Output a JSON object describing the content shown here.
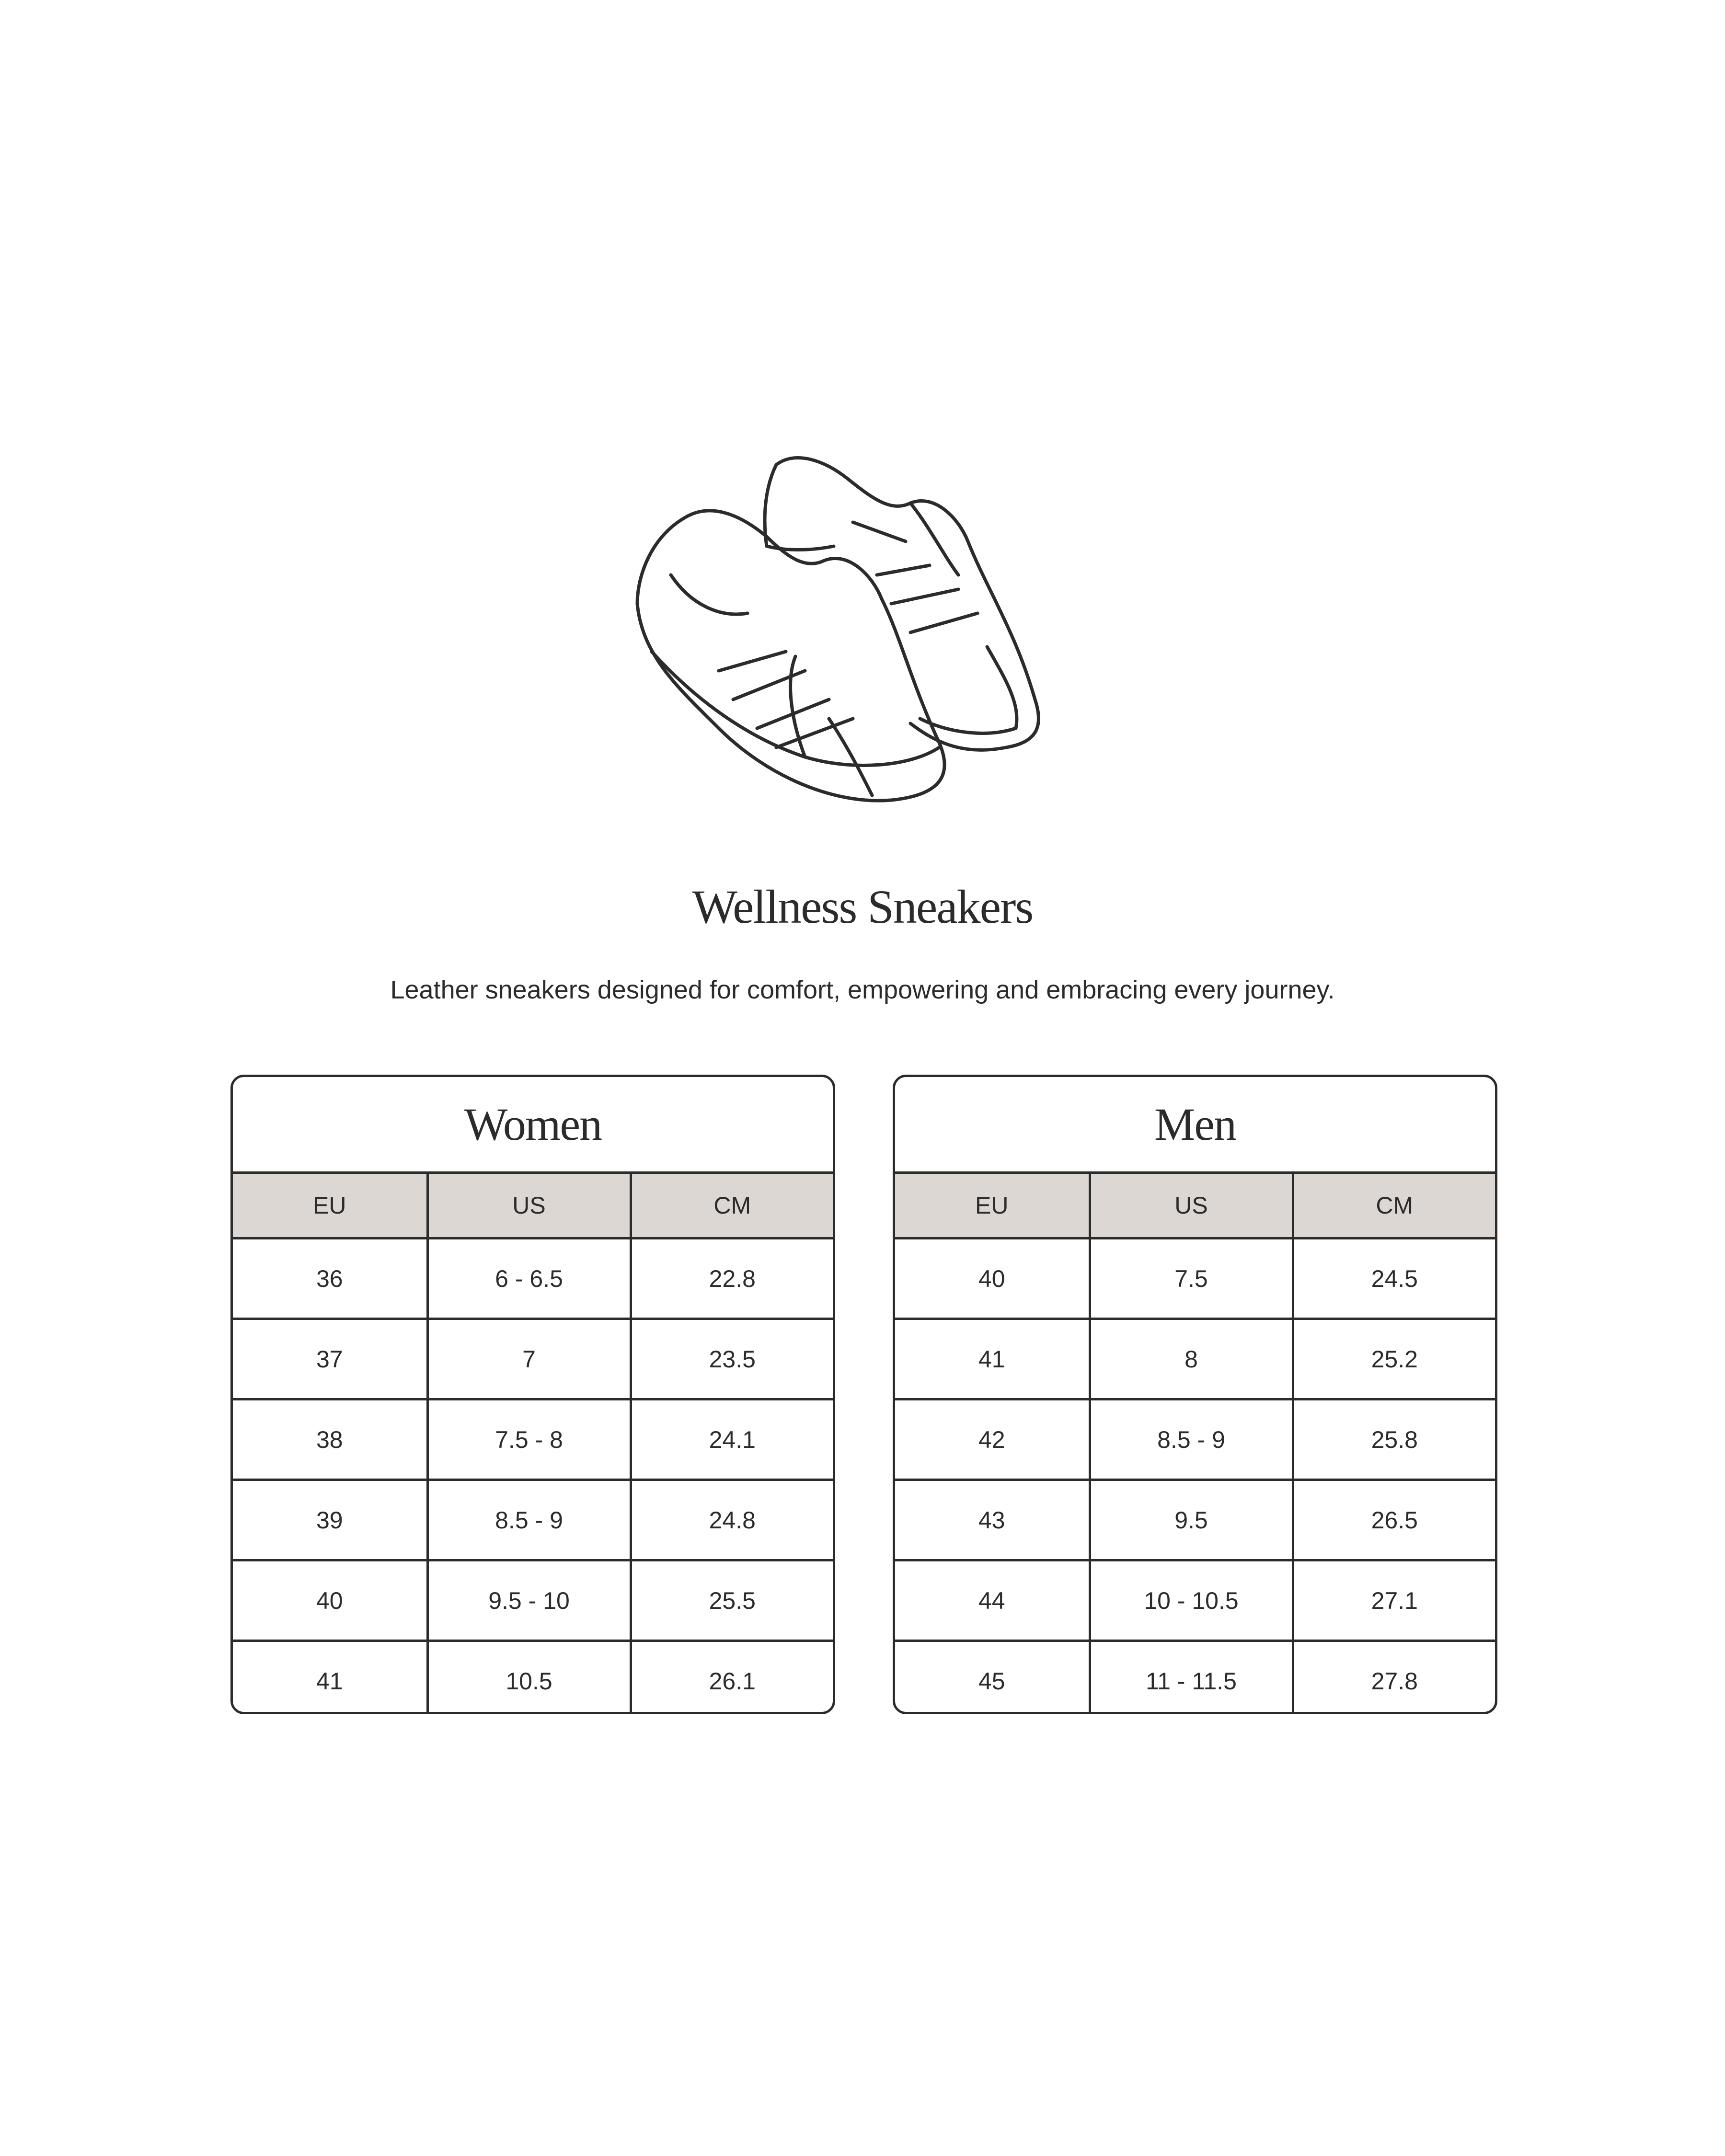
{
  "product": {
    "title": "Wellness Sneakers",
    "description": "Leather sneakers designed for comfort, empowering and embracing every journey.",
    "illustration": "sneakers-line-drawing"
  },
  "colors": {
    "header_bg": "#dcd7d3",
    "border": "#2b2b2b",
    "text": "#2b2b2b"
  },
  "women": {
    "title": "Women",
    "columns": [
      "EU",
      "US",
      "CM"
    ],
    "rows": [
      [
        "36",
        "6 - 6.5",
        "22.8"
      ],
      [
        "37",
        "7",
        "23.5"
      ],
      [
        "38",
        "7.5 - 8",
        "24.1"
      ],
      [
        "39",
        "8.5 - 9",
        "24.8"
      ],
      [
        "40",
        "9.5 - 10",
        "25.5"
      ],
      [
        "41",
        "10.5",
        "26.1"
      ]
    ]
  },
  "men": {
    "title": "Men",
    "columns": [
      "EU",
      "US",
      "CM"
    ],
    "rows": [
      [
        "40",
        "7.5",
        "24.5"
      ],
      [
        "41",
        "8",
        "25.2"
      ],
      [
        "42",
        "8.5 - 9",
        "25.8"
      ],
      [
        "43",
        "9.5",
        "26.5"
      ],
      [
        "44",
        "10 - 10.5",
        "27.1"
      ],
      [
        "45",
        "11 - 11.5",
        "27.8"
      ]
    ]
  }
}
